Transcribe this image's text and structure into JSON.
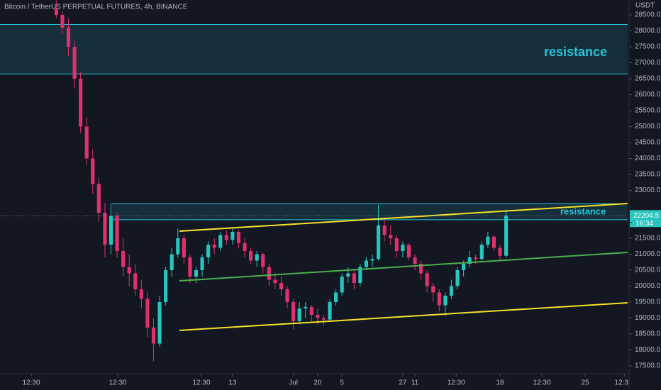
{
  "chart_data": {
    "type": "candlestick",
    "title": "Bitcoin / TetherUS PERPETUAL FUTURES, 4h, BINANCE",
    "y_axis_unit": "USDT",
    "countdown": "16:34",
    "up_color": "#26c6bf",
    "down_color": "#e0306f",
    "xlim": [
      -6.13,
      45.5
    ],
    "ylim": [
      17255,
      28967
    ],
    "xticks": [
      {
        "value": -3.56,
        "label": "12:30"
      },
      13,
      {
        "value": 3.56,
        "label": "12:30"
      },
      20,
      {
        "value": 10.44,
        "label": "12:30"
      },
      27,
      {
        "value": 18,
        "label": "Jul"
      },
      {
        "value": 22,
        "label": "5"
      },
      {
        "value": 28,
        "label": "11"
      },
      {
        "value": 31.39,
        "label": "12:30"
      },
      {
        "value": 35,
        "label": "18"
      },
      {
        "value": 38.45,
        "label": "12:30"
      },
      {
        "value": 42,
        "label": "25"
      },
      {
        "value": 45.22,
        "label": "12:3"
      }
    ],
    "yticks": [
      {
        "value": 28500,
        "label": "28500.0"
      },
      {
        "value": 28000,
        "label": "28000.0"
      },
      {
        "value": 27500,
        "label": "27500.0"
      },
      {
        "value": 27000,
        "label": "27000.0"
      },
      {
        "value": 26500,
        "label": "26500.0"
      },
      {
        "value": 26000,
        "label": "26000.0"
      },
      {
        "value": 25500,
        "label": "25500.0"
      },
      {
        "value": 25000,
        "label": "25000.0"
      },
      {
        "value": 24500,
        "label": "24500.0"
      },
      {
        "value": 24000,
        "label": "24000.0"
      },
      {
        "value": 23500,
        "label": "23500.0"
      },
      {
        "value": 23000,
        "label": "23000.0"
      },
      {
        "value": 22500,
        "label": "22500.0"
      },
      {
        "value": 22000,
        "label": "22000.0"
      },
      {
        "value": 21500,
        "label": "21500.0"
      },
      {
        "value": 21000,
        "label": "21000.0"
      },
      {
        "value": 20500,
        "label": "20500.0"
      },
      {
        "value": 20000,
        "label": "20000.0"
      },
      {
        "value": 19500,
        "label": "19500.0"
      },
      {
        "value": 19000,
        "label": "19000.0"
      },
      {
        "value": 18500,
        "label": "18500.0"
      },
      {
        "value": 18000,
        "label": "18000.0"
      },
      {
        "value": 17500,
        "label": "17500.0"
      }
    ],
    "x": [
      -1.5,
      -1,
      -0.5,
      0,
      0.5,
      1,
      1.5,
      2,
      2.5,
      3,
      3.5,
      4,
      4.5,
      5,
      5.5,
      6,
      6.5,
      7,
      7.5,
      8,
      8.5,
      9,
      9.5,
      10,
      10.5,
      11,
      11.5,
      12,
      12.5,
      13,
      13.5,
      14,
      14.5,
      15,
      15.5,
      16,
      16.5,
      17,
      17.5,
      18,
      18.5,
      19,
      19.5,
      20,
      20.5,
      21,
      21.5,
      22,
      22.5,
      23,
      23.5,
      24,
      24.5,
      25,
      25.5,
      26,
      26.5,
      27,
      27.5,
      28,
      28.5,
      29,
      29.5,
      30,
      30.5,
      31,
      31.5,
      32,
      32.5,
      33,
      33.5,
      34,
      34.5,
      35,
      35.5
    ],
    "ohlc": [
      [
        28700,
        28950,
        28400,
        28500
      ],
      [
        28500,
        28600,
        27900,
        28100
      ],
      [
        28100,
        28400,
        27200,
        27500
      ],
      [
        27500,
        27700,
        26200,
        26500
      ],
      [
        26500,
        26700,
        24800,
        25000
      ],
      [
        25000,
        25300,
        23800,
        24000
      ],
      [
        24000,
        24300,
        22900,
        23200
      ],
      [
        23200,
        23400,
        22000,
        22300
      ],
      [
        22300,
        22600,
        20900,
        21300
      ],
      [
        21300,
        22600,
        21000,
        22200
      ],
      [
        22200,
        22300,
        20900,
        21100
      ],
      [
        21100,
        21500,
        20300,
        20600
      ],
      [
        20600,
        21000,
        20000,
        20400
      ],
      [
        20400,
        20700,
        19700,
        19900
      ],
      [
        19900,
        20200,
        19300,
        19600
      ],
      [
        19600,
        19800,
        18400,
        18700
      ],
      [
        18700,
        19000,
        17650,
        18200
      ],
      [
        18200,
        19700,
        18100,
        19500
      ],
      [
        19500,
        20600,
        19400,
        20500
      ],
      [
        20500,
        21200,
        20300,
        21000
      ],
      [
        21000,
        21800,
        20900,
        21500
      ],
      [
        21500,
        21600,
        20700,
        20900
      ],
      [
        20900,
        21000,
        20100,
        20300
      ],
      [
        20300,
        20600,
        20100,
        20500
      ],
      [
        20500,
        21000,
        20300,
        20900
      ],
      [
        20900,
        21400,
        20700,
        21300
      ],
      [
        21300,
        21500,
        21000,
        21200
      ],
      [
        21200,
        21700,
        21100,
        21600
      ],
      [
        21600,
        21750,
        21300,
        21450
      ],
      [
        21450,
        21800,
        21300,
        21700
      ],
      [
        21700,
        21750,
        21200,
        21350
      ],
      [
        21350,
        21500,
        20900,
        21100
      ],
      [
        21100,
        21200,
        20700,
        20800
      ],
      [
        20800,
        21100,
        20600,
        21000
      ],
      [
        21000,
        21050,
        20400,
        20600
      ],
      [
        20600,
        20700,
        20000,
        20200
      ],
      [
        20200,
        20400,
        19900,
        20100
      ],
      [
        20100,
        20300,
        19700,
        19900
      ],
      [
        19900,
        20000,
        19300,
        19500
      ],
      [
        19500,
        19600,
        18650,
        18900
      ],
      [
        18900,
        19500,
        18800,
        19300
      ],
      [
        19300,
        19500,
        19000,
        19350
      ],
      [
        19350,
        19400,
        18900,
        19100
      ],
      [
        19100,
        19300,
        18800,
        19000
      ],
      [
        19000,
        19100,
        18750,
        18950
      ],
      [
        18950,
        19600,
        18900,
        19500
      ],
      [
        19500,
        19900,
        19400,
        19800
      ],
      [
        19800,
        20400,
        19700,
        20300
      ],
      [
        20300,
        20600,
        20100,
        20400
      ],
      [
        20400,
        20500,
        19900,
        20100
      ],
      [
        20100,
        20700,
        20000,
        20600
      ],
      [
        20600,
        20900,
        20500,
        20800
      ],
      [
        20800,
        21000,
        20600,
        20850
      ],
      [
        20850,
        22550,
        20800,
        21900
      ],
      [
        21900,
        22100,
        21400,
        21600
      ],
      [
        21600,
        21900,
        21300,
        21500
      ],
      [
        21500,
        21600,
        20900,
        21100
      ],
      [
        21100,
        21400,
        20900,
        21300
      ],
      [
        21300,
        21350,
        20800,
        20900
      ],
      [
        20900,
        21000,
        20500,
        20700
      ],
      [
        20700,
        20800,
        20200,
        20400
      ],
      [
        20400,
        20500,
        19800,
        20000
      ],
      [
        20000,
        20100,
        19500,
        19800
      ],
      [
        19800,
        19900,
        19200,
        19400
      ],
      [
        19400,
        19800,
        19050,
        19700
      ],
      [
        19700,
        20200,
        19600,
        20000
      ],
      [
        20000,
        20600,
        19900,
        20500
      ],
      [
        20500,
        20800,
        20300,
        20700
      ],
      [
        20700,
        21100,
        20600,
        20900
      ],
      [
        20900,
        21000,
        20700,
        20850
      ],
      [
        20850,
        21400,
        20800,
        21300
      ],
      [
        21300,
        21700,
        21200,
        21550
      ],
      [
        21550,
        21600,
        21100,
        21200
      ],
      [
        21200,
        21300,
        20800,
        20950
      ],
      [
        20950,
        22400,
        20900,
        22204.5
      ]
    ],
    "zones": [
      {
        "label": "resistance",
        "x": [
          -6.13,
          45.5
        ],
        "y": [
          26650,
          28200
        ],
        "color": "#26c6da"
      },
      {
        "label": "resistance",
        "x": [
          3.09,
          45.5
        ],
        "y": [
          22080,
          22580
        ],
        "color": "#26c6da"
      }
    ],
    "lines": [
      {
        "color": "#f5e12b",
        "points": [
          [
            8.63,
            21722
          ],
          [
            45.5,
            22589
          ]
        ]
      },
      {
        "color": "#f5e12b",
        "points": [
          [
            8.63,
            18611
          ],
          [
            45.5,
            19477
          ]
        ]
      },
      {
        "color": "#4caf50",
        "points": [
          [
            8.63,
            20166
          ],
          [
            45.5,
            21055
          ]
        ]
      }
    ]
  }
}
